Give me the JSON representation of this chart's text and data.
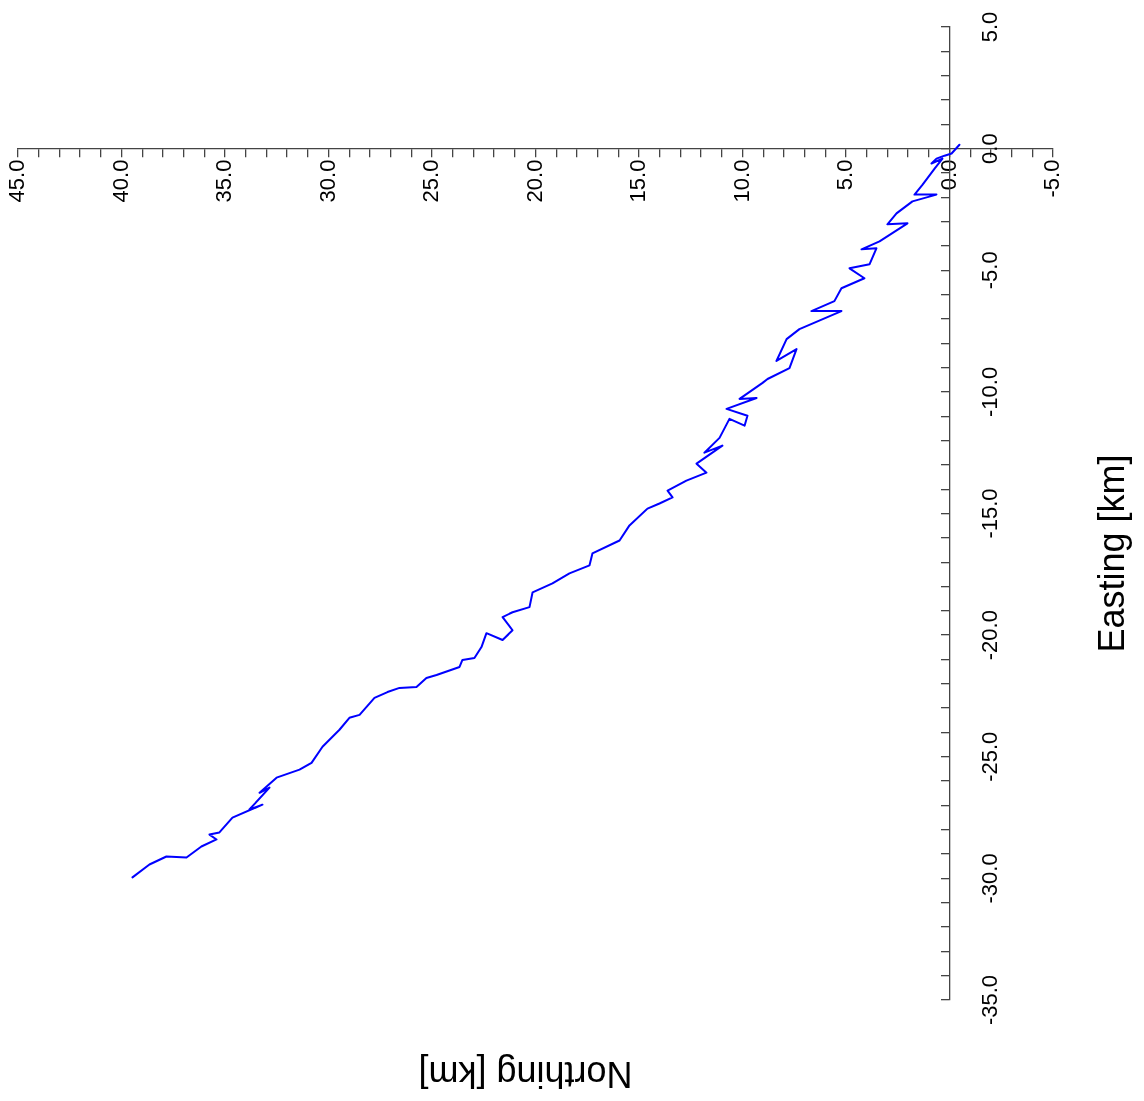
{
  "chart_data": {
    "type": "line",
    "xlabel": "Northing [km]",
    "ylabel": "Easting [km]",
    "color": "#0000ff",
    "marker": "none",
    "xlim": [
      45,
      -5
    ],
    "ylim": [
      -35,
      5
    ],
    "xticks": [
      {
        "value": 45,
        "label": "45.0"
      },
      {
        "value": 44,
        "label": null
      },
      {
        "value": 43,
        "label": null
      },
      {
        "value": 42,
        "label": null
      },
      {
        "value": 41,
        "label": null
      },
      {
        "value": 40,
        "label": "40.0"
      },
      {
        "value": 39,
        "label": null
      },
      {
        "value": 38,
        "label": null
      },
      {
        "value": 37,
        "label": null
      },
      {
        "value": 36,
        "label": null
      },
      {
        "value": 35,
        "label": "35.0"
      },
      {
        "value": 34,
        "label": null
      },
      {
        "value": 33,
        "label": null
      },
      {
        "value": 32,
        "label": null
      },
      {
        "value": 31,
        "label": null
      },
      {
        "value": 30,
        "label": "30.0"
      },
      {
        "value": 29,
        "label": null
      },
      {
        "value": 28,
        "label": null
      },
      {
        "value": 27,
        "label": null
      },
      {
        "value": 26,
        "label": null
      },
      {
        "value": 25,
        "label": "25.0"
      },
      {
        "value": 24,
        "label": null
      },
      {
        "value": 23,
        "label": null
      },
      {
        "value": 22,
        "label": null
      },
      {
        "value": 21,
        "label": null
      },
      {
        "value": 20,
        "label": "20.0"
      },
      {
        "value": 19,
        "label": null
      },
      {
        "value": 18,
        "label": null
      },
      {
        "value": 17,
        "label": null
      },
      {
        "value": 16,
        "label": null
      },
      {
        "value": 15,
        "label": "15.0"
      },
      {
        "value": 14,
        "label": null
      },
      {
        "value": 13,
        "label": null
      },
      {
        "value": 12,
        "label": null
      },
      {
        "value": 11,
        "label": null
      },
      {
        "value": 10,
        "label": "10.0"
      },
      {
        "value": 9,
        "label": null
      },
      {
        "value": 8,
        "label": null
      },
      {
        "value": 7,
        "label": null
      },
      {
        "value": 6,
        "label": null
      },
      {
        "value": 5,
        "label": "5.0"
      },
      {
        "value": 4,
        "label": null
      },
      {
        "value": 3,
        "label": null
      },
      {
        "value": 2,
        "label": null
      },
      {
        "value": 1,
        "label": null
      },
      {
        "value": 0,
        "label": "0.0"
      },
      {
        "value": -1,
        "label": null
      },
      {
        "value": -2,
        "label": null
      },
      {
        "value": -3,
        "label": null
      },
      {
        "value": -4,
        "label": null
      },
      {
        "value": -5,
        "label": "-5.0"
      }
    ],
    "yticks": [
      {
        "value": 5,
        "label": "5.0"
      },
      {
        "value": 4,
        "label": null
      },
      {
        "value": 3,
        "label": null
      },
      {
        "value": 2,
        "label": null
      },
      {
        "value": 1,
        "label": null
      },
      {
        "value": 0,
        "label": "0.0"
      },
      {
        "value": -1,
        "label": null
      },
      {
        "value": -2,
        "label": null
      },
      {
        "value": -3,
        "label": null
      },
      {
        "value": -4,
        "label": null
      },
      {
        "value": -5,
        "label": "-5.0"
      },
      {
        "value": -6,
        "label": null
      },
      {
        "value": -7,
        "label": null
      },
      {
        "value": -8,
        "label": null
      },
      {
        "value": -9,
        "label": null
      },
      {
        "value": -10,
        "label": "-10.0"
      },
      {
        "value": -11,
        "label": null
      },
      {
        "value": -12,
        "label": null
      },
      {
        "value": -13,
        "label": null
      },
      {
        "value": -14,
        "label": null
      },
      {
        "value": -15,
        "label": "-15.0"
      },
      {
        "value": -16,
        "label": null
      },
      {
        "value": -17,
        "label": null
      },
      {
        "value": -18,
        "label": null
      },
      {
        "value": -19,
        "label": null
      },
      {
        "value": -20,
        "label": "-20.0"
      },
      {
        "value": -21,
        "label": null
      },
      {
        "value": -22,
        "label": null
      },
      {
        "value": -23,
        "label": null
      },
      {
        "value": -24,
        "label": null
      },
      {
        "value": -25,
        "label": "-25.0"
      },
      {
        "value": -26,
        "label": null
      },
      {
        "value": -27,
        "label": null
      },
      {
        "value": -28,
        "label": null
      },
      {
        "value": -29,
        "label": null
      },
      {
        "value": -30,
        "label": "-30.0"
      },
      {
        "value": -31,
        "label": null
      },
      {
        "value": -32,
        "label": null
      },
      {
        "value": -33,
        "label": null
      },
      {
        "value": -34,
        "label": null
      },
      {
        "value": -35,
        "label": "-35.0"
      }
    ],
    "x": [
      -0.48,
      -0.1,
      0.24,
      0.63,
      0.87,
      0.34,
      0.72,
      1.3,
      1.69,
      0.63,
      1.79,
      2.56,
      3.0,
      2.03,
      3.38,
      4.25,
      3.53,
      3.86,
      4.83,
      4.11,
      5.22,
      5.56,
      6.67,
      5.22,
      7.25,
      7.87,
      8.36,
      7.39,
      7.73,
      8.79,
      9.03,
      10.14,
      9.32,
      10.77,
      9.76,
      9.9,
      10.63,
      11.11,
      11.84,
      10.97,
      12.22,
      11.74,
      12.71,
      13.62,
      13.38,
      14.01,
      14.59,
      15.46,
      15.94,
      17.25,
      17.39,
      18.36,
      19.18,
      20.14,
      20.29,
      21.11,
      21.59,
      21.11,
      21.59,
      22.37,
      22.61,
      22.95,
      23.53,
      23.67,
      24.78,
      25.27,
      25.75,
      26.57,
      27.15,
      27.78,
      28.5,
      28.99,
      29.47,
      30.29,
      30.82,
      31.4,
      32.51,
      33.33,
      32.85,
      33.82,
      33.19,
      34.64,
      35.27,
      35.75,
      35.41,
      36.14,
      36.86,
      37.83,
      38.65,
      39.47
    ],
    "values": [
      0.16,
      -0.2,
      -0.29,
      -0.41,
      -0.61,
      -0.41,
      -0.82,
      -1.48,
      -1.89,
      -1.89,
      -2.17,
      -2.66,
      -3.11,
      -3.07,
      -3.81,
      -4.14,
      -4.1,
      -4.75,
      -4.92,
      -5.33,
      -5.74,
      -6.27,
      -6.68,
      -6.68,
      -7.42,
      -7.83,
      -8.73,
      -8.24,
      -9.02,
      -9.47,
      -9.63,
      -10.29,
      -10.25,
      -10.7,
      -10.98,
      -11.39,
      -11.11,
      -11.89,
      -12.5,
      -12.21,
      -12.95,
      -13.32,
      -13.65,
      -14.06,
      -14.34,
      -14.59,
      -14.8,
      -15.49,
      -16.11,
      -16.64,
      -17.13,
      -17.46,
      -17.87,
      -18.24,
      -18.85,
      -19.06,
      -19.26,
      -19.8,
      -20.2,
      -19.92,
      -20.49,
      -20.94,
      -21.02,
      -21.31,
      -21.64,
      -21.76,
      -22.13,
      -22.17,
      -22.34,
      -22.58,
      -23.28,
      -23.4,
      -23.89,
      -24.59,
      -25.25,
      -25.53,
      -25.86,
      -26.48,
      -26.27,
      -27.17,
      -26.97,
      -27.5,
      -28.11,
      -28.2,
      -28.4,
      -28.69,
      -29.14,
      -29.1,
      -29.43,
      -29.96
    ]
  }
}
